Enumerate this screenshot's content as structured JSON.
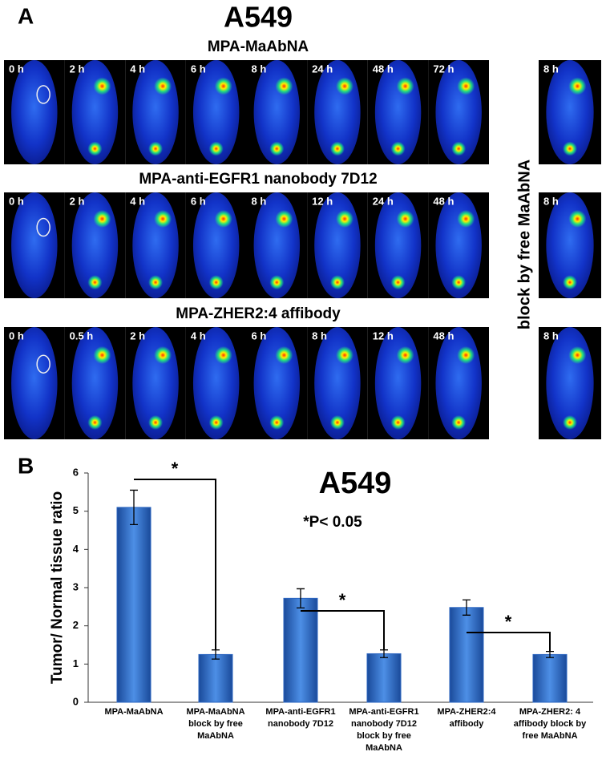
{
  "panel_a": {
    "label": "A",
    "title": "A549",
    "rows": [
      {
        "title": "MPA-MaAbNA",
        "time_labels": [
          "0 h",
          "2 h",
          "4 h",
          "6 h",
          "8 h",
          "24 h",
          "48 h",
          "72 h"
        ]
      },
      {
        "title": "MPA-anti-EGFR1 nanobody 7D12",
        "time_labels": [
          "0 h",
          "2 h",
          "4 h",
          "6 h",
          "8 h",
          "12 h",
          "24 h",
          "48 h"
        ]
      },
      {
        "title": "MPA-ZHER2:4 affibody",
        "time_labels": [
          "0 h",
          "0.5 h",
          "2 h",
          "4 h",
          "6 h",
          "8 h",
          "12 h",
          "48 h"
        ]
      }
    ],
    "block_label": "block by free MaAbNA",
    "block_time_labels": [
      "8 h",
      "8 h",
      "8 h"
    ]
  },
  "chart_data": {
    "type": "bar",
    "panel_label": "B",
    "title": "A549",
    "annotation": "*P< 0.05",
    "ylabel": "Tumor/ Normal tissue ratio",
    "categories": [
      [
        "MPA-MaAbNA"
      ],
      [
        "MPA-MaAbNA",
        "block by free",
        "MaAbNA"
      ],
      [
        "MPA-anti-EGFR1",
        "nanobody 7D12"
      ],
      [
        "MPA-anti-EGFR1",
        "nanobody 7D12",
        "block by free",
        "MaAbNA"
      ],
      [
        "MPA-ZHER2:4",
        "affibody"
      ],
      [
        "MPA-ZHER2: 4",
        "affibody block by",
        "free MaAbNA"
      ]
    ],
    "values": [
      5.1,
      1.25,
      2.72,
      1.27,
      2.48,
      1.25
    ],
    "errors": [
      0.45,
      0.12,
      0.25,
      0.1,
      0.2,
      0.08
    ],
    "significance": [
      "*",
      "*",
      "*"
    ],
    "color": "#2a64c0",
    "ylim": [
      0,
      6
    ],
    "yticks": [
      0,
      1,
      2,
      3,
      4,
      5,
      6
    ]
  }
}
